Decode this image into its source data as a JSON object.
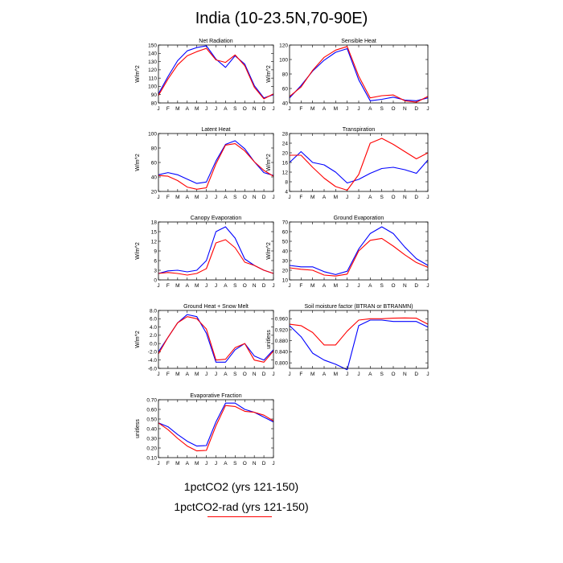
{
  "title": "India (10-23.5N,70-90E)",
  "colors": {
    "series1": "#0000ff",
    "series2": "#ff0000"
  },
  "legend": [
    {
      "label": "1pctCO2 (yrs 121-150)",
      "color": "#0000ff"
    },
    {
      "label": "1pctCO2-rad (yrs 121-150)",
      "color": "#ff0000"
    }
  ],
  "chart_data": [
    {
      "type": "line",
      "title": "Net Radiation",
      "ylabel": "W/m^2",
      "categories": [
        "J",
        "F",
        "M",
        "A",
        "M",
        "J",
        "J",
        "A",
        "S",
        "O",
        "N",
        "D",
        "J"
      ],
      "ylim": [
        80,
        150
      ],
      "yticks": [
        80,
        90,
        100,
        110,
        120,
        130,
        140,
        150
      ],
      "ytick_labels": [
        "80",
        "90",
        "100",
        "110",
        "120",
        "130",
        "140",
        "150"
      ],
      "series": [
        {
          "values": [
            91,
            112,
            131,
            143,
            147,
            149,
            133,
            123,
            137,
            127,
            101,
            86,
            90
          ]
        },
        {
          "values": [
            89,
            109,
            126,
            137,
            142,
            146,
            132,
            129,
            138,
            125,
            99,
            85,
            91
          ]
        }
      ]
    },
    {
      "type": "line",
      "title": "Sensible Heat",
      "ylabel": "W/m^2",
      "categories": [
        "J",
        "F",
        "M",
        "A",
        "M",
        "J",
        "J",
        "A",
        "S",
        "O",
        "N",
        "D",
        "J"
      ],
      "ylim": [
        40,
        120
      ],
      "yticks": [
        40,
        60,
        80,
        100,
        120
      ],
      "ytick_labels": [
        "40",
        "60",
        "80",
        "100",
        "120"
      ],
      "series": [
        {
          "values": [
            47,
            64,
            84,
            99,
            110,
            115,
            72,
            43,
            45,
            48,
            44,
            43,
            47
          ]
        },
        {
          "values": [
            49,
            62,
            85,
            103,
            113,
            118,
            77,
            47,
            50,
            51,
            43,
            41,
            49
          ]
        }
      ]
    },
    {
      "type": "line",
      "title": "Latent Heat",
      "ylabel": "W/m^2",
      "categories": [
        "J",
        "F",
        "M",
        "A",
        "M",
        "J",
        "J",
        "A",
        "S",
        "O",
        "N",
        "D",
        "J"
      ],
      "ylim": [
        20,
        100
      ],
      "yticks": [
        20,
        40,
        60,
        80,
        100
      ],
      "ytick_labels": [
        "20",
        "40",
        "60",
        "80",
        "100"
      ],
      "series": [
        {
          "values": [
            43,
            46,
            43,
            37,
            31,
            33,
            62,
            85,
            90,
            79,
            61,
            46,
            42
          ]
        },
        {
          "values": [
            42,
            41,
            35,
            26,
            23,
            25,
            58,
            84,
            86,
            76,
            61,
            49,
            41
          ]
        }
      ]
    },
    {
      "type": "line",
      "title": "Transpiration",
      "ylabel": "W/m^2",
      "categories": [
        "J",
        "F",
        "M",
        "A",
        "M",
        "J",
        "J",
        "A",
        "S",
        "O",
        "N",
        "D",
        "J"
      ],
      "ylim": [
        4,
        28
      ],
      "yticks": [
        4,
        8,
        12,
        16,
        20,
        24,
        28
      ],
      "ytick_labels": [
        "4",
        "8",
        "12",
        "16",
        "20",
        "24",
        "28"
      ],
      "series": [
        {
          "values": [
            16,
            20.5,
            16,
            15,
            12,
            7.5,
            9,
            11.5,
            13.5,
            14,
            13,
            11.5,
            17
          ]
        },
        {
          "values": [
            19,
            19,
            14,
            9.5,
            6,
            4.5,
            11,
            24,
            26,
            23.5,
            20.5,
            17.5,
            20
          ]
        }
      ]
    },
    {
      "type": "line",
      "title": "Canopy Evaporation",
      "ylabel": "W/m^2",
      "categories": [
        "J",
        "F",
        "M",
        "A",
        "M",
        "J",
        "J",
        "A",
        "S",
        "O",
        "N",
        "D",
        "J"
      ],
      "ylim": [
        0,
        18
      ],
      "yticks": [
        0,
        3,
        6,
        9,
        12,
        15,
        18
      ],
      "ytick_labels": [
        "0",
        "3",
        "6",
        "9",
        "12",
        "15",
        "18"
      ],
      "series": [
        {
          "values": [
            2,
            2.8,
            3,
            2.5,
            3,
            6,
            15,
            16.5,
            13,
            6.5,
            4.5,
            3,
            2
          ]
        },
        {
          "values": [
            2,
            2.3,
            2,
            1.5,
            2,
            3.5,
            11.5,
            12.5,
            10,
            5.5,
            4.5,
            3,
            2
          ]
        }
      ]
    },
    {
      "type": "line",
      "title": "Ground Evaporation",
      "ylabel": "W/m^2",
      "categories": [
        "J",
        "F",
        "M",
        "A",
        "M",
        "J",
        "J",
        "A",
        "S",
        "O",
        "N",
        "D",
        "J"
      ],
      "ylim": [
        10,
        70
      ],
      "yticks": [
        10,
        20,
        30,
        40,
        50,
        60,
        70
      ],
      "ytick_labels": [
        "10",
        "20",
        "30",
        "40",
        "50",
        "60",
        "70"
      ],
      "series": [
        {
          "values": [
            25,
            23.5,
            23.5,
            18.5,
            15.5,
            19,
            42,
            58,
            65,
            58,
            44,
            32,
            25
          ]
        },
        {
          "values": [
            22.5,
            21,
            20,
            15,
            14,
            16,
            40,
            51,
            53,
            45,
            36,
            28,
            23
          ]
        }
      ]
    },
    {
      "type": "line",
      "title": "Ground Heat + Snow Melt",
      "ylabel": "W/m^2",
      "categories": [
        "J",
        "F",
        "M",
        "A",
        "M",
        "J",
        "J",
        "A",
        "S",
        "O",
        "N",
        "D",
        "J"
      ],
      "ylim": [
        -6,
        8
      ],
      "yticks": [
        -6,
        -4,
        -2,
        0,
        2,
        4,
        6,
        8
      ],
      "ytick_labels": [
        "-6.0",
        "-4.0",
        "-2.0",
        "0.0",
        "2.0",
        "4.0",
        "6.0",
        "8.0"
      ],
      "series": [
        {
          "values": [
            -2,
            1.5,
            5,
            7,
            6.5,
            2.5,
            -4.5,
            -4.5,
            -1.5,
            0,
            -3,
            -4,
            -1.5
          ]
        },
        {
          "values": [
            -2.5,
            1.5,
            5,
            6.5,
            6,
            3.5,
            -4,
            -3.8,
            -1,
            0,
            -4,
            -4.5,
            -1.8
          ]
        }
      ]
    },
    {
      "type": "line",
      "title": "Soil moisture factor (BTRAN or BTRANMN)",
      "ylabel": "unitless",
      "categories": [
        "J",
        "F",
        "M",
        "A",
        "M",
        "J",
        "J",
        "A",
        "S",
        "O",
        "N",
        "D",
        "J"
      ],
      "ylim": [
        0.78,
        0.99
      ],
      "yticks": [
        0.8,
        0.84,
        0.88,
        0.92,
        0.96
      ],
      "ytick_labels": [
        "0.800",
        "0.840",
        "0.880",
        "0.920",
        "0.960"
      ],
      "series": [
        {
          "values": [
            0.935,
            0.895,
            0.835,
            0.81,
            0.795,
            0.775,
            0.935,
            0.955,
            0.955,
            0.95,
            0.95,
            0.95,
            0.93
          ]
        },
        {
          "values": [
            0.94,
            0.935,
            0.91,
            0.865,
            0.865,
            0.915,
            0.955,
            0.96,
            0.96,
            0.962,
            0.963,
            0.962,
            0.94
          ]
        }
      ]
    },
    {
      "type": "line",
      "title": "Evaporative Fraction",
      "ylabel": "unitless",
      "categories": [
        "J",
        "F",
        "M",
        "A",
        "M",
        "J",
        "J",
        "A",
        "S",
        "O",
        "N",
        "D",
        "J"
      ],
      "ylim": [
        0.1,
        0.7
      ],
      "yticks": [
        0.1,
        0.2,
        0.3,
        0.4,
        0.5,
        0.6,
        0.7
      ],
      "ytick_labels": [
        "0.10",
        "0.20",
        "0.30",
        "0.40",
        "0.50",
        "0.60",
        "0.70"
      ],
      "series": [
        {
          "values": [
            0.46,
            0.42,
            0.34,
            0.27,
            0.22,
            0.225,
            0.47,
            0.665,
            0.665,
            0.6,
            0.57,
            0.52,
            0.47
          ]
        },
        {
          "values": [
            0.46,
            0.39,
            0.3,
            0.22,
            0.17,
            0.175,
            0.43,
            0.64,
            0.63,
            0.58,
            0.57,
            0.54,
            0.48
          ]
        }
      ]
    }
  ]
}
